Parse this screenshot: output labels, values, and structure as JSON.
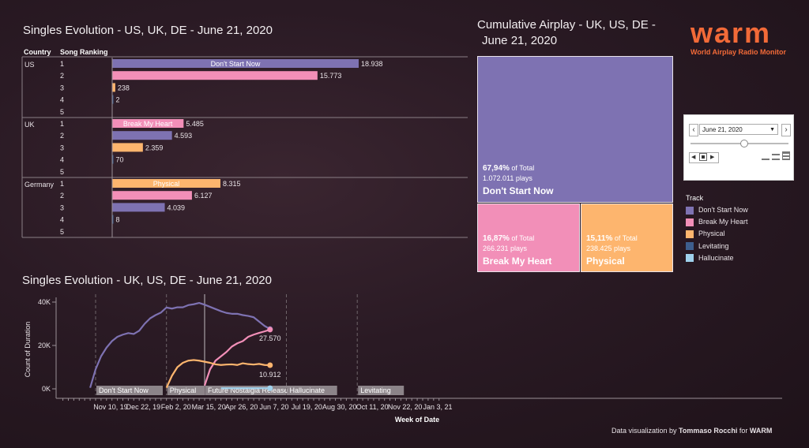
{
  "top_title": "Singles Evolution - US, UK, DE - June 21, 2020",
  "tree_title_line1": "Cumulative Airplay - UK, US, DE -",
  "tree_title_line2": "June 21, 2020",
  "bottom_title": "Singles Evolution - UK, US, DE - June 21, 2020",
  "logo": {
    "name": "WARM",
    "subtitle": "World Airplay Radio Monitor"
  },
  "credit": {
    "prefix": "Data visualization by ",
    "author": "Tommaso Rocchi",
    "mid": " for ",
    "org": "WARM"
  },
  "colors": {
    "purple": "#7e72b2",
    "pink": "#f28fb8",
    "orange": "#fdb56e",
    "dark_blue": "#3e5f8e",
    "light_blue": "#9fd1ec"
  },
  "filter": {
    "date": "June 21, 2020"
  },
  "legend": {
    "title": "Track",
    "items": [
      {
        "label": "Don't Start Now",
        "color": "#7e72b2"
      },
      {
        "label": "Break My Heart",
        "color": "#f28fb8"
      },
      {
        "label": "Physical",
        "color": "#fdb56e"
      },
      {
        "label": "Levitating",
        "color": "#3e5f8e"
      },
      {
        "label": "Hallucinate",
        "color": "#9fd1ec"
      }
    ]
  },
  "treemap": [
    {
      "pct": "67,94%",
      "of": " of Total",
      "plays": "1.072.011 plays",
      "track": "Don't Start Now",
      "color": "#7e72b2"
    },
    {
      "pct": "16,87%",
      "of": " of Total",
      "plays": "266.231 plays",
      "track": "Break My Heart",
      "color": "#f28fb8"
    },
    {
      "pct": "15,11%",
      "of": " of Total",
      "plays": "238.425 plays",
      "track": "Physical",
      "color": "#fdb56e"
    }
  ],
  "chart_data": [
    {
      "type": "bar",
      "title": "Singles Evolution - US, UK, DE - June 21, 2020",
      "column_headers": [
        "Country",
        "Song Ranking"
      ],
      "xlim": [
        0,
        19800
      ],
      "groups": [
        {
          "country": "US",
          "rows": [
            {
              "rank": "1",
              "value": 18938,
              "label": "18.938",
              "track": "Don't Start Now",
              "color": "#7e72b2"
            },
            {
              "rank": "2",
              "value": 15773,
              "label": "15.773",
              "track": "",
              "color": "#f28fb8"
            },
            {
              "rank": "3",
              "value": 238,
              "label": "238",
              "track": "",
              "color": "#fdb56e"
            },
            {
              "rank": "4",
              "value": 2,
              "label": "2",
              "track": "",
              "color": "#3e5f8e"
            },
            {
              "rank": "5",
              "value": 0,
              "label": "",
              "track": "",
              "color": "#9fd1ec"
            }
          ]
        },
        {
          "country": "UK",
          "rows": [
            {
              "rank": "1",
              "value": 5485,
              "label": "5.485",
              "track": "Break My Heart",
              "color": "#f28fb8"
            },
            {
              "rank": "2",
              "value": 4593,
              "label": "4.593",
              "track": "",
              "color": "#7e72b2"
            },
            {
              "rank": "3",
              "value": 2359,
              "label": "2.359",
              "track": "",
              "color": "#fdb56e"
            },
            {
              "rank": "4",
              "value": 70,
              "label": "70",
              "track": "",
              "color": "#3e5f8e"
            },
            {
              "rank": "5",
              "value": 0,
              "label": "",
              "track": "",
              "color": "#9fd1ec"
            }
          ]
        },
        {
          "country": "Germany",
          "rows": [
            {
              "rank": "1",
              "value": 8315,
              "label": "8.315",
              "track": "Physical",
              "color": "#fdb56e"
            },
            {
              "rank": "2",
              "value": 6127,
              "label": "6.127",
              "track": "",
              "color": "#f28fb8"
            },
            {
              "rank": "3",
              "value": 4039,
              "label": "4.039",
              "track": "",
              "color": "#7e72b2"
            },
            {
              "rank": "4",
              "value": 8,
              "label": "8",
              "track": "",
              "color": "#3e5f8e"
            },
            {
              "rank": "5",
              "value": 0,
              "label": "",
              "track": "",
              "color": "#9fd1ec"
            }
          ]
        }
      ]
    },
    {
      "type": "line",
      "title": "Singles Evolution - UK, US, DE - June 21, 2020",
      "xlabel": "Week of Date",
      "ylabel": "Count of Duration",
      "x_ticks": [
        "Nov 10, 19",
        "Dec 22, 19",
        "Feb 2, 20",
        "Mar 15, 20",
        "Apr 26, 20",
        "Jun 7, 20",
        "Jul 19, 20",
        "Aug 30, 20",
        "Oct 11, 20",
        "Nov 22, 20",
        "Jan 3, 21"
      ],
      "y_ticks": [
        {
          "v": 0,
          "label": "0K"
        },
        {
          "v": 20000,
          "label": "20K"
        },
        {
          "v": 40000,
          "label": "40K"
        }
      ],
      "ylim": [
        0,
        40000
      ],
      "xlim_weeks": [
        -2,
        63
      ],
      "release_markers": [
        {
          "week": 0,
          "label": "Don't Start Now"
        },
        {
          "week": 13,
          "label": "Physical"
        },
        {
          "week": 20,
          "label": "Future Nostalgia Release"
        },
        {
          "week": 35,
          "label": "Hallucinate"
        },
        {
          "week": 48,
          "label": "Levitating"
        }
      ],
      "series": [
        {
          "name": "Don't Start Now",
          "color": "#7e72b2",
          "end_label": "27.570",
          "x": [
            -1,
            0,
            1,
            2,
            3,
            4,
            5,
            6,
            7,
            8,
            9,
            10,
            11,
            12,
            13,
            14,
            15,
            16,
            17,
            18,
            19,
            20,
            21,
            22,
            23,
            24,
            25,
            26,
            27,
            28,
            29,
            30,
            31,
            32
          ],
          "y": [
            500,
            9000,
            15000,
            19000,
            22000,
            24000,
            25000,
            25700,
            25300,
            26800,
            30000,
            32500,
            34000,
            35200,
            37500,
            37000,
            37600,
            37600,
            38600,
            39000,
            39600,
            38800,
            37800,
            36800,
            35800,
            35000,
            34600,
            34600,
            34000,
            33600,
            33000,
            31000,
            29000,
            27570
          ]
        },
        {
          "name": "Break My Heart",
          "color": "#f28fb8",
          "end_label": "",
          "x": [
            20,
            21,
            22,
            23,
            24,
            25,
            26,
            27,
            28,
            29,
            30,
            31,
            32
          ],
          "y": [
            1500,
            9000,
            13000,
            15000,
            17000,
            19500,
            21000,
            22000,
            24000,
            25000,
            25800,
            26500,
            27300
          ]
        },
        {
          "name": "Physical",
          "color": "#fdb56e",
          "end_label": "10.912",
          "x": [
            13,
            14,
            15,
            16,
            17,
            18,
            19,
            20,
            21,
            22,
            23,
            24,
            25,
            26,
            27,
            28,
            29,
            30,
            31,
            32
          ],
          "y": [
            500,
            6000,
            10000,
            12000,
            13000,
            13300,
            13000,
            12500,
            12000,
            11300,
            11000,
            11200,
            11300,
            11000,
            11800,
            11400,
            11200,
            11500,
            11000,
            10912
          ]
        },
        {
          "name": "Hallucinate",
          "color": "#9fd1ec",
          "end_label": "",
          "x": [
            23,
            32
          ],
          "y": [
            300,
            300
          ]
        }
      ]
    }
  ]
}
